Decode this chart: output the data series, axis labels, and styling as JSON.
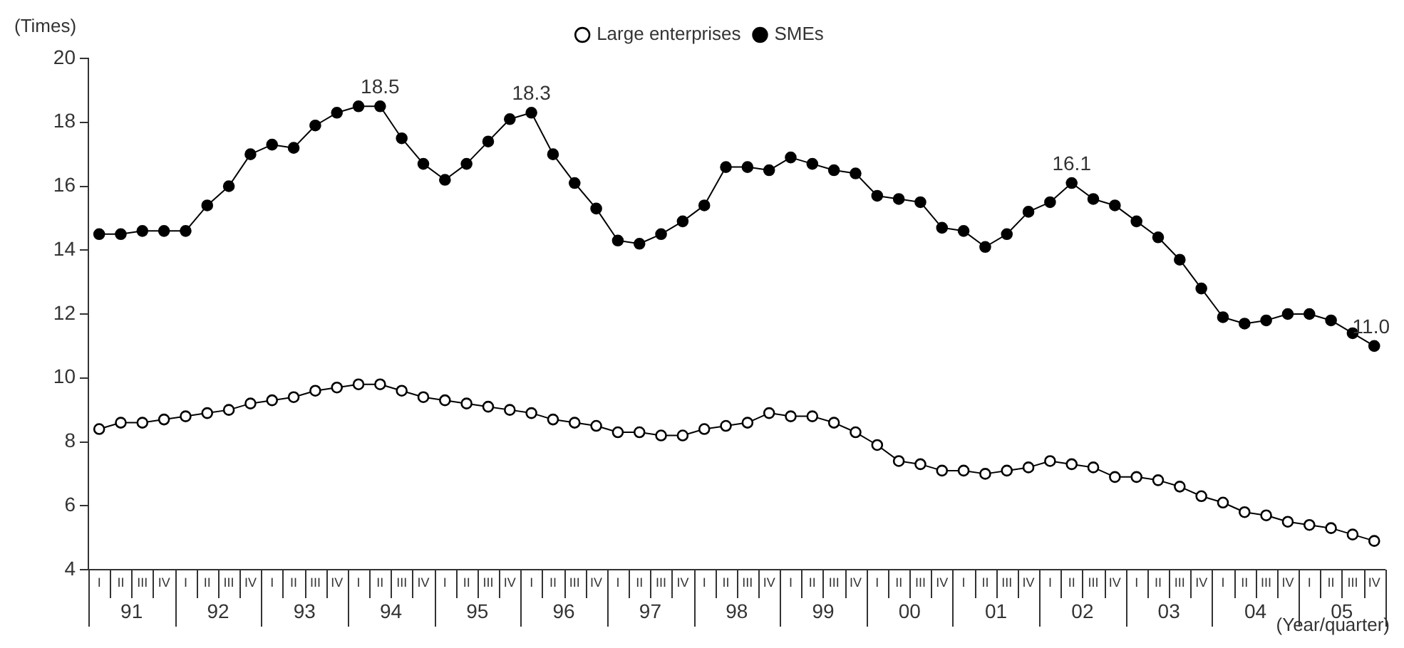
{
  "chart_data": {
    "type": "line",
    "ylabel": "(Times)",
    "xlabel": "(Year/quarter)",
    "categories": [
      "I",
      "II",
      "III",
      "IV",
      "I",
      "II",
      "III",
      "IV",
      "I",
      "II",
      "III",
      "IV",
      "I",
      "II",
      "III",
      "IV",
      "I",
      "II",
      "III",
      "IV",
      "I",
      "II",
      "III",
      "IV",
      "I",
      "II",
      "III",
      "IV",
      "I",
      "II",
      "III",
      "IV",
      "I",
      "II",
      "III",
      "IV",
      "I",
      "II",
      "III",
      "IV",
      "I",
      "II",
      "III",
      "IV",
      "I",
      "II",
      "III",
      "IV",
      "I",
      "II",
      "III",
      "IV",
      "I",
      "II",
      "III",
      "IV",
      "I",
      "II",
      "III",
      "IV"
    ],
    "annotations": [
      "91",
      "92",
      "93",
      "94",
      "95",
      "96",
      "97",
      "98",
      "99",
      "00",
      "01",
      "02",
      "03",
      "04",
      "05"
    ],
    "series": [
      {
        "name": "Large enterprises",
        "color": "#000000",
        "values": [
          8.4,
          8.6,
          8.6,
          8.7,
          8.8,
          8.9,
          9.0,
          9.2,
          9.3,
          9.4,
          9.6,
          9.7,
          9.8,
          9.8,
          9.6,
          9.4,
          9.3,
          9.2,
          9.1,
          9.0,
          8.9,
          8.7,
          8.6,
          8.5,
          8.3,
          8.3,
          8.2,
          8.2,
          8.4,
          8.5,
          8.6,
          8.9,
          8.8,
          8.8,
          8.6,
          8.3,
          7.9,
          7.4,
          7.3,
          7.1,
          7.1,
          7.0,
          7.1,
          7.2,
          7.4,
          7.3,
          7.2,
          6.9,
          6.9,
          6.8,
          6.6,
          6.3,
          6.1,
          5.8,
          5.7,
          5.5,
          5.4,
          5.3,
          5.1,
          4.9
        ]
      },
      {
        "name": "SMEs",
        "color": "#000000",
        "values": [
          14.5,
          14.5,
          14.6,
          14.6,
          14.6,
          15.4,
          16.0,
          17.0,
          17.3,
          17.2,
          17.9,
          18.3,
          18.5,
          18.5,
          17.5,
          16.7,
          16.2,
          16.7,
          17.4,
          18.1,
          18.3,
          17.0,
          16.1,
          15.3,
          14.3,
          14.2,
          14.5,
          14.9,
          15.4,
          16.6,
          16.6,
          16.5,
          16.9,
          16.7,
          16.5,
          16.4,
          15.7,
          15.6,
          15.5,
          14.7,
          14.6,
          14.1,
          14.5,
          15.2,
          15.5,
          16.1,
          15.6,
          15.4,
          14.9,
          14.4,
          13.7,
          12.8,
          11.9,
          11.7,
          11.8,
          12.0,
          12.0,
          11.8,
          11.4,
          11.0
        ],
        "value_labels": [
          null,
          null,
          null,
          null,
          null,
          null,
          null,
          null,
          null,
          null,
          null,
          null,
          null,
          "18.5",
          null,
          null,
          null,
          null,
          null,
          null,
          "18.3",
          null,
          null,
          null,
          null,
          null,
          null,
          null,
          null,
          null,
          null,
          null,
          null,
          null,
          null,
          null,
          null,
          null,
          null,
          null,
          null,
          null,
          null,
          null,
          null,
          "16.1",
          null,
          null,
          null,
          null,
          null,
          null,
          null,
          null,
          null,
          null,
          null,
          null,
          null,
          "11.0"
        ]
      }
    ],
    "ylim": [
      4,
      20
    ],
    "yticks": [
      4,
      6,
      8,
      10,
      12,
      14,
      16,
      18,
      20
    ],
    "grid": false,
    "legend": "top",
    "marker": "circle",
    "line_style": "solid"
  }
}
